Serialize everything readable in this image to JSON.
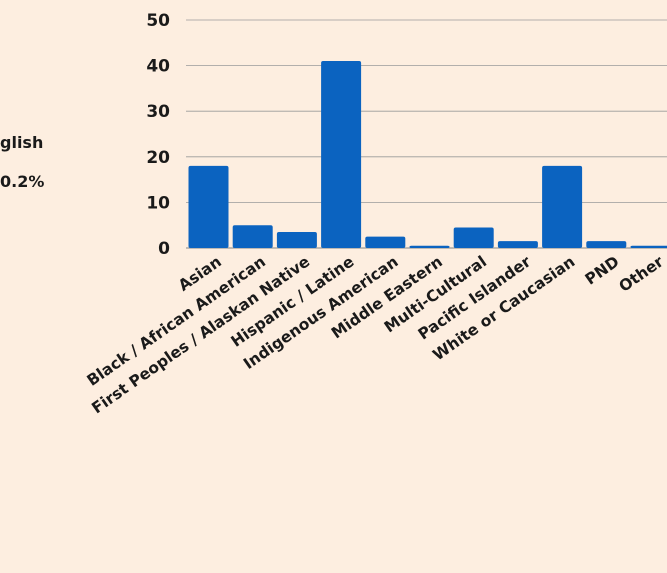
{
  "left_panel": {
    "line1": "glish",
    "line2": "0.2%"
  },
  "colors": {
    "background": "#fdeee0",
    "bar": "#0b63c0",
    "grid": "#9a9a9a",
    "text": "#1a1a1a"
  },
  "chart_data": {
    "type": "bar",
    "categories": [
      "Asian",
      "Black / African American",
      "First Peoples  / Alaskan Native",
      "Hispanic / Latine",
      "Indigenous American",
      "Middle Eastern",
      "Multi-Cultural",
      "Pacific Islander",
      "White or Caucasian",
      "PND",
      "Other"
    ],
    "values": [
      18,
      5,
      3.5,
      41,
      2.5,
      0.5,
      4.5,
      1.5,
      18,
      1.5,
      0.5
    ],
    "ylim": [
      0,
      50
    ],
    "yticks": [
      0,
      10,
      20,
      30,
      40,
      50
    ],
    "grid": true,
    "legend": "none"
  }
}
